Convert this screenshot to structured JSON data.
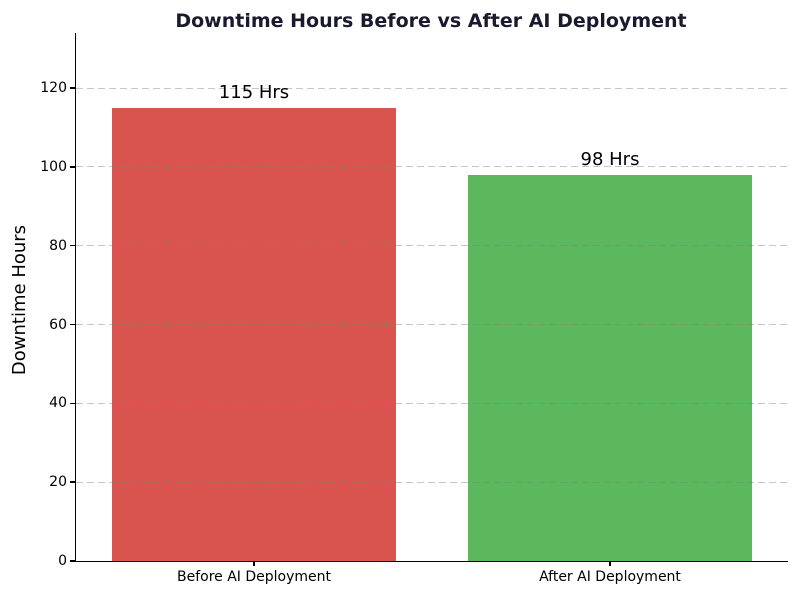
{
  "figure": {
    "background": "#ffffff",
    "title_color": "#1a1a2e",
    "axis_color": "#000000",
    "text_color": "#000000"
  },
  "chart_data": {
    "type": "bar",
    "title": "Downtime Hours Before vs After AI Deployment",
    "xlabel": "",
    "ylabel": "Downtime Hours",
    "categories": [
      "Before AI Deployment",
      "After AI Deployment"
    ],
    "values": [
      115,
      98
    ],
    "bar_labels": [
      "115 Hrs",
      "98 Hrs"
    ],
    "bar_colors": [
      "#d9534f",
      "#5cb85c"
    ],
    "ylim": [
      0,
      134
    ],
    "yticks": [
      0,
      20,
      40,
      60,
      80,
      100,
      120
    ],
    "grid": {
      "axis": "y",
      "linestyle": "dashed",
      "color": "#808080",
      "opacity": 0.45,
      "on": true,
      "drawn_above_bars": true
    },
    "legend": "none",
    "bar_width_fraction": 0.8
  }
}
